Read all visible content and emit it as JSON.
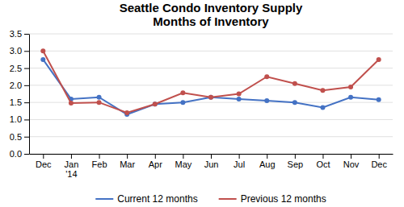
{
  "chart_data": {
    "type": "line",
    "title": "Seattle Condo Inventory Supply",
    "subtitle": "Months of Inventory",
    "categories": [
      "Dec",
      "Jan\n'14",
      "Feb",
      "Mar",
      "Apr",
      "May",
      "Jun",
      "Jul",
      "Aug",
      "Sep",
      "Oct",
      "Nov",
      "Dec"
    ],
    "series": [
      {
        "name": "Current 12 months",
        "color": "#4472C4",
        "values": [
          2.75,
          1.6,
          1.65,
          1.15,
          1.45,
          1.5,
          1.65,
          1.6,
          1.55,
          1.5,
          1.35,
          1.65,
          1.58
        ]
      },
      {
        "name": "Previous 12 months",
        "color": "#C0504D",
        "values": [
          3.0,
          1.48,
          1.5,
          1.2,
          1.45,
          1.78,
          1.65,
          1.75,
          2.25,
          2.05,
          1.85,
          1.95,
          2.75
        ]
      }
    ],
    "ylim": [
      0.0,
      3.5
    ],
    "yticks": [
      {
        "value": 0.0,
        "label": "0.0"
      },
      0.5,
      {
        "value": 1.0,
        "label": "1.0"
      },
      1.5,
      {
        "value": 2.0,
        "label": "2.0"
      },
      2.5,
      {
        "value": 3.0,
        "label": "3.0"
      },
      3.5
    ],
    "grid": true,
    "legend": "bottom",
    "marker": "circle"
  }
}
